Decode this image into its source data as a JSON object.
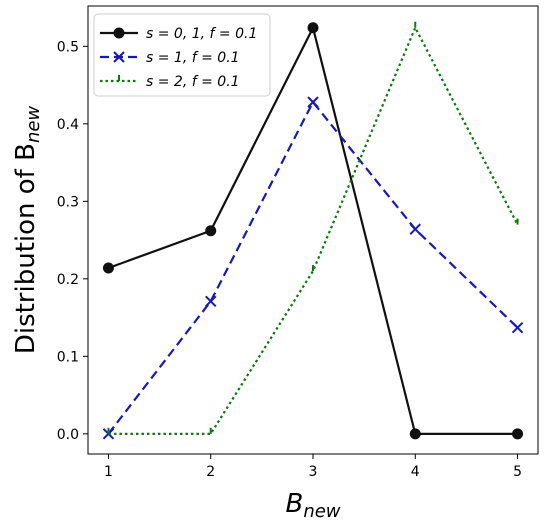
{
  "chart_data": {
    "type": "line",
    "xlabel": "B",
    "xlabel_sub": "new",
    "ylabel": "Distribution of B",
    "ylabel_sub": "new",
    "x": [
      1,
      2,
      3,
      4,
      5
    ],
    "xticks": [
      "1",
      "2",
      "3",
      "4",
      "5"
    ],
    "yticks": [
      "0.0",
      "0.1",
      "0.2",
      "0.3",
      "0.4",
      "0.5"
    ],
    "xlim": [
      0.8,
      5.2
    ],
    "ylim": [
      -0.026,
      0.552
    ],
    "grid": false,
    "legend_position": "top-left",
    "series": [
      {
        "name": "s = 0, 1, f = 0.1",
        "values": [
          0.214,
          0.262,
          0.524,
          0.0,
          0.0
        ],
        "color": "#111111",
        "style": "solid",
        "marker": "circle"
      },
      {
        "name": "s = 1, f = 0.1",
        "values": [
          0.0,
          0.171,
          0.428,
          0.264,
          0.137
        ],
        "color": "#1515cc",
        "style": "dashed",
        "marker": "x"
      },
      {
        "name": "s = 2, f = 0.1",
        "values": [
          0.0,
          0.0,
          0.21,
          0.524,
          0.27
        ],
        "color": "#0a7a0a",
        "style": "dotted",
        "marker": "tick"
      }
    ]
  }
}
